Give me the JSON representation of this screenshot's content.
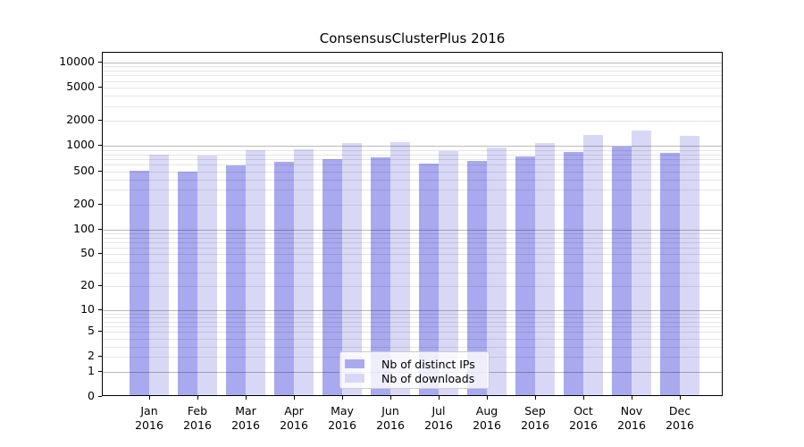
{
  "title": "ConsensusClusterPlus 2016",
  "chart_data": {
    "type": "bar",
    "title": "ConsensusClusterPlus 2016",
    "categories": [
      "Jan",
      "Feb",
      "Mar",
      "Apr",
      "May",
      "Jun",
      "Jul",
      "Aug",
      "Sep",
      "Oct",
      "Nov",
      "Dec"
    ],
    "x_tick_year": "2016",
    "series": [
      {
        "name": "Nb of distinct IPs",
        "color": "#a9a9ef",
        "values": [
          480,
          470,
          560,
          620,
          665,
          700,
          590,
          635,
          720,
          810,
          950,
          790
        ]
      },
      {
        "name": "Nb of downloads",
        "color": "#d8d8f6",
        "values": [
          755,
          740,
          850,
          875,
          1035,
          1065,
          830,
          920,
          1040,
          1295,
          1465,
          1260
        ]
      }
    ],
    "xlabel": "",
    "ylabel": "",
    "yscale": "log1p",
    "ylim": [
      0,
      13000
    ],
    "y_ticks": [
      0,
      1,
      2,
      5,
      10,
      20,
      50,
      100,
      200,
      500,
      1000,
      2000,
      5000,
      10000
    ],
    "grid": "major-and-minor-horizontal",
    "legend_position": "lower center"
  }
}
